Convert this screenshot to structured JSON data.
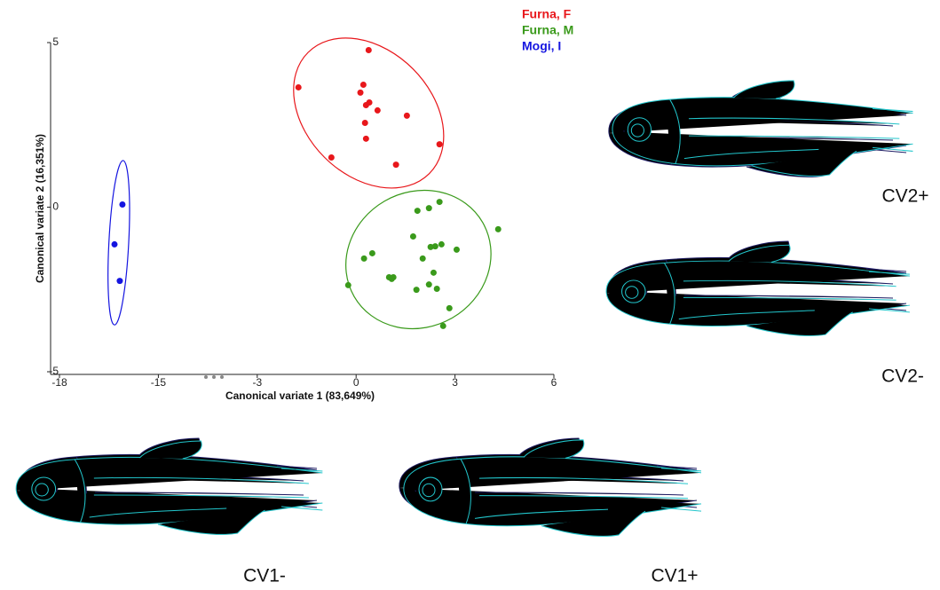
{
  "chart_data": {
    "type": "scatter",
    "x_label": "Canonical variate 1 (83,649%)",
    "y_label": "Canonical variate 2 (16,351%)",
    "xlim": [
      -18,
      6
    ],
    "xbreak": [
      -13.5,
      -4.5
    ],
    "xticks": [
      -18,
      -15,
      -3,
      0,
      3,
      6
    ],
    "ylim": [
      -5,
      5
    ],
    "yticks": [
      -5,
      0,
      5
    ],
    "series": [
      {
        "name": "Furna, F",
        "color": "#e8171b",
        "x": [
          0.38,
          -1.75,
          0.22,
          0.13,
          0.4,
          0.3,
          0.65,
          1.54,
          0.27,
          0.3,
          2.53,
          -0.75,
          1.21
        ],
        "values": [
          4.77,
          3.64,
          3.72,
          3.48,
          3.18,
          3.1,
          2.94,
          2.78,
          2.56,
          2.08,
          1.91,
          1.51,
          1.29
        ],
        "ellipse": {
          "cx": 0.38,
          "cy": 2.86,
          "rx": 2.6,
          "ry": 1.9,
          "angle": 45
        }
      },
      {
        "name": "Furna, M",
        "color": "#3a9a1b",
        "x": [
          2.53,
          1.86,
          2.21,
          4.31,
          1.73,
          2.26,
          2.4,
          2.59,
          3.05,
          0.49,
          0.24,
          2.02,
          2.35,
          1.0,
          1.13,
          1.08,
          -0.24,
          2.21,
          1.83,
          2.45,
          2.83,
          2.64
        ],
        "values": [
          0.16,
          -0.11,
          -0.03,
          -0.67,
          -0.89,
          -1.21,
          -1.19,
          -1.13,
          -1.29,
          -1.4,
          -1.56,
          -1.56,
          -1.99,
          -2.13,
          -2.13,
          -2.18,
          -2.37,
          -2.35,
          -2.51,
          -2.48,
          -3.07,
          -3.61
        ],
        "ellipse": {
          "cx": 1.89,
          "cy": -1.59,
          "rx": 2.25,
          "ry": 2.05,
          "angle": -30
        }
      },
      {
        "name": "Mogi, I",
        "color": "#1515e0",
        "x": [
          -16.09,
          -16.33,
          -16.17
        ],
        "values": [
          0.08,
          -1.13,
          -2.24
        ],
        "ellipse": {
          "cx": -16.2,
          "cy": -1.08,
          "rx": 0.3,
          "ry": 2.5,
          "angle": 3
        }
      }
    ],
    "annotations": [
      "CV2+",
      "CV2-",
      "CV1-",
      "CV1+"
    ]
  }
}
